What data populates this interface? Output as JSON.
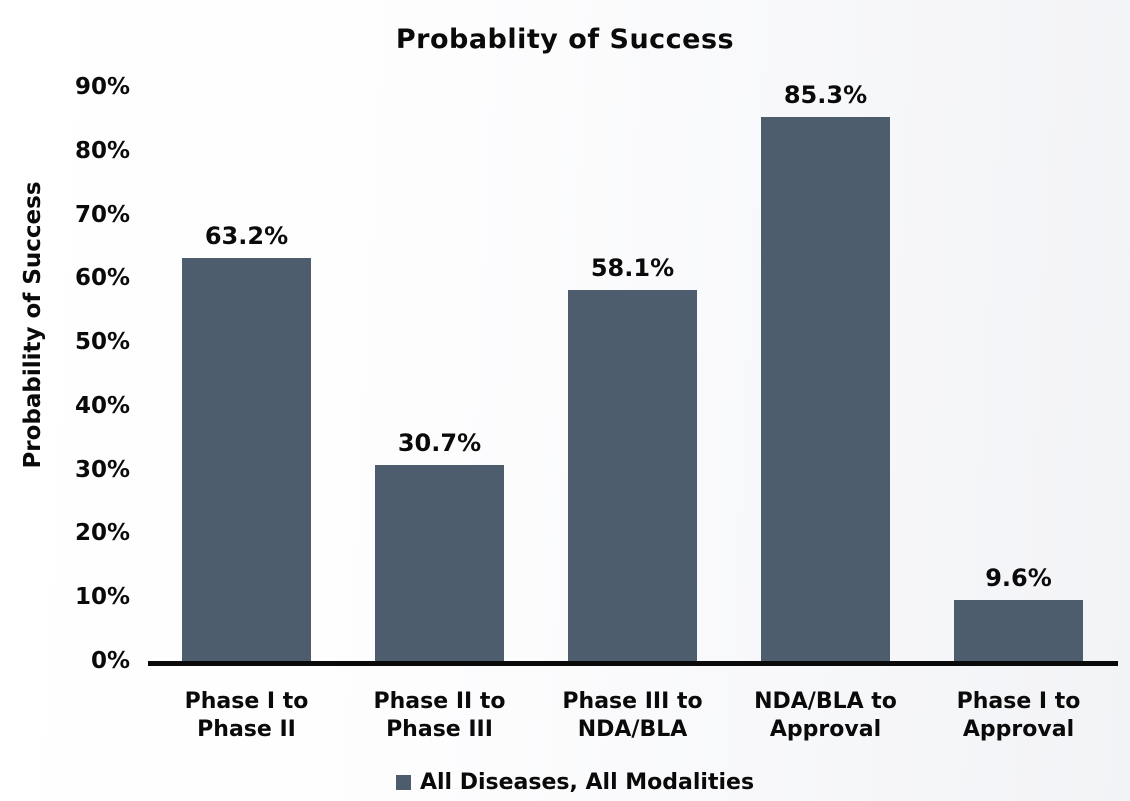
{
  "chart_data": {
    "type": "bar",
    "title": "Probablity of Success",
    "ylabel": "Probability of Success",
    "xlabel": "",
    "categories": [
      "Phase I to\nPhase II",
      "Phase II to\nPhase III",
      "Phase III to\nNDA/BLA",
      "NDA/BLA to\nApproval",
      "Phase I to\nApproval"
    ],
    "values": [
      63.2,
      30.7,
      58.1,
      85.3,
      9.6
    ],
    "value_labels": [
      "63.2%",
      "30.7%",
      "58.1%",
      "85.3%",
      "9.6%"
    ],
    "y_ticks": [
      "0%",
      "10%",
      "20%",
      "30%",
      "40%",
      "50%",
      "60%",
      "70%",
      "80%",
      "90%"
    ],
    "y_tick_values": [
      0,
      10,
      20,
      30,
      40,
      50,
      60,
      70,
      80,
      90
    ],
    "ylim": [
      0,
      90
    ],
    "grid": false,
    "bar_color": "#4e5d6e",
    "text_color": "#0a0a0a",
    "legend_position": "bottom",
    "legend": [
      {
        "label": "All Diseases, All Modalities",
        "color": "#4e5d6e"
      }
    ]
  }
}
